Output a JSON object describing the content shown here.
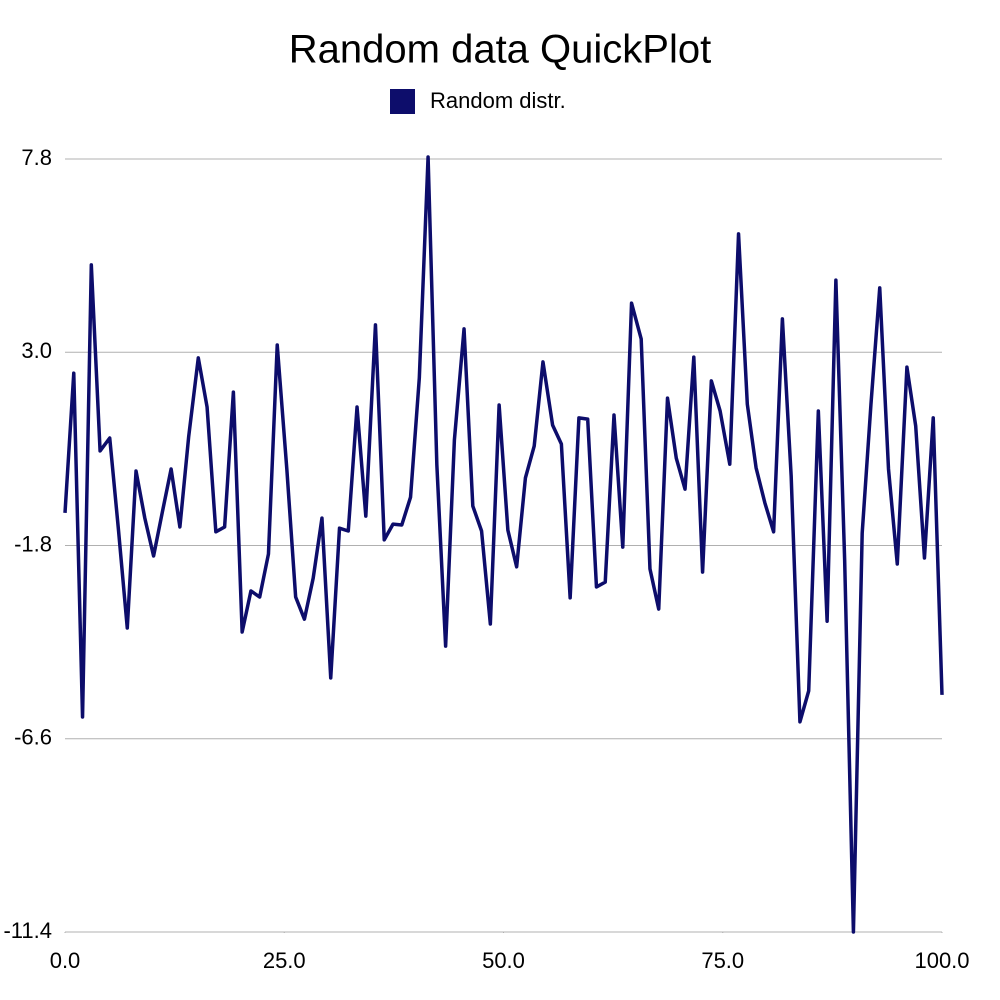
{
  "chart_data": {
    "type": "line",
    "title": "Random data QuickPlot",
    "x": [
      0.0,
      1.0,
      2.0,
      3.0,
      4.0,
      5.1,
      6.1,
      7.1,
      8.1,
      9.1,
      10.1,
      11.1,
      12.1,
      13.1,
      14.1,
      15.2,
      16.2,
      17.2,
      18.2,
      19.2,
      20.2,
      21.2,
      22.2,
      23.2,
      24.2,
      25.3,
      26.3,
      27.3,
      28.3,
      29.3,
      30.3,
      31.3,
      32.3,
      33.3,
      34.3,
      35.4,
      36.4,
      37.4,
      38.4,
      39.4,
      40.4,
      41.4,
      42.4,
      43.4,
      44.4,
      45.5,
      46.5,
      47.5,
      48.5,
      49.5,
      50.5,
      51.5,
      52.5,
      53.5,
      54.5,
      55.6,
      56.6,
      57.6,
      58.6,
      59.6,
      60.6,
      61.6,
      62.6,
      63.6,
      64.6,
      65.7,
      66.7,
      67.7,
      68.7,
      69.7,
      70.7,
      71.7,
      72.7,
      73.7,
      74.7,
      75.8,
      76.8,
      77.8,
      78.8,
      79.8,
      80.8,
      81.8,
      82.8,
      83.8,
      84.8,
      85.9,
      86.9,
      87.9,
      88.9,
      89.9,
      90.9,
      91.9,
      92.9,
      93.9,
      94.9,
      96.0,
      97.0,
      98.0,
      99.0,
      100.0
    ],
    "series": [
      {
        "name": "Random distr.",
        "color": "#0d0d6b",
        "values": [
          -0.99,
          2.48,
          -6.06,
          5.17,
          0.55,
          0.87,
          -1.42,
          -3.85,
          0.05,
          -1.12,
          -2.06,
          -0.97,
          0.1,
          -1.34,
          0.9,
          2.86,
          1.64,
          -1.46,
          -1.34,
          2.01,
          -3.95,
          -2.93,
          -3.08,
          -2.01,
          3.18,
          0.08,
          -3.08,
          -3.63,
          -2.61,
          -1.12,
          -5.09,
          -1.37,
          -1.44,
          1.64,
          -1.07,
          3.68,
          -1.66,
          -1.27,
          -1.29,
          -0.6,
          2.36,
          7.85,
          0.2,
          -4.3,
          0.82,
          3.58,
          -0.82,
          -1.44,
          -3.75,
          1.69,
          -1.42,
          -2.33,
          -0.12,
          0.67,
          2.76,
          1.19,
          0.72,
          -3.1,
          1.37,
          1.34,
          -2.83,
          -2.71,
          1.44,
          -1.84,
          4.22,
          3.33,
          -2.38,
          -3.38,
          1.86,
          0.37,
          -0.4,
          2.88,
          -2.46,
          2.29,
          1.54,
          0.22,
          5.94,
          1.71,
          0.13,
          -0.74,
          -1.46,
          3.83,
          -0.07,
          -6.18,
          -5.41,
          1.54,
          -3.68,
          4.79,
          -2.16,
          -11.4,
          -1.49,
          1.71,
          4.6,
          0.1,
          -2.26,
          2.63,
          1.17,
          -2.11,
          1.37,
          -5.51
        ]
      }
    ],
    "xlim": [
      0,
      100
    ],
    "xticks": [
      {
        "value": 0,
        "label": "0.0"
      },
      {
        "value": 25,
        "label": "25.0"
      },
      {
        "value": 50,
        "label": "50.0"
      },
      {
        "value": 75,
        "label": "75.0"
      },
      {
        "value": 100,
        "label": "100.0"
      }
    ],
    "ylim": [
      -11.4,
      7.8
    ],
    "yticks": [
      -11.4,
      -6.6,
      -1.8,
      {
        "value": 3,
        "label": "3.0"
      },
      7.8
    ],
    "grid": true,
    "legend": "top"
  }
}
